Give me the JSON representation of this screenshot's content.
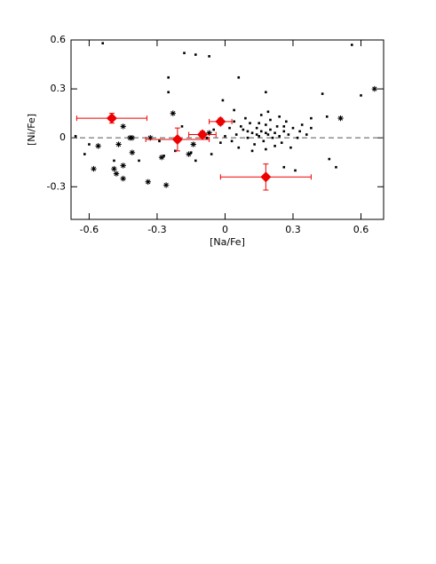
{
  "chart_data": {
    "type": "scatter",
    "x_label": "[Na/Fe]",
    "y_label": "[Ni/Fe]",
    "xlim": [
      -0.68,
      0.7
    ],
    "ylim": [
      -0.5,
      0.6
    ],
    "xticks": [
      -0.6,
      -0.3,
      0,
      0.3,
      0.6
    ],
    "yticks": [
      -0.3,
      0,
      0.3,
      0.6
    ],
    "reference_line": 0,
    "series": [
      {
        "marker": "dot",
        "color": "#000000",
        "x": [
          -0.54,
          -0.18,
          -0.13,
          -0.07,
          -0.25,
          -0.25,
          0.06,
          0.56,
          0.6,
          0.43,
          -0.66,
          -0.62,
          -0.6,
          -0.49,
          -0.38,
          -0.29,
          -0.27,
          -0.22,
          -0.19,
          -0.15,
          -0.13,
          -0.06,
          -0.01,
          0.04,
          0.18,
          0.26,
          0.31,
          0.46,
          0.49,
          0.38,
          0.45,
          0.05,
          0.08,
          0.1,
          0.12,
          0.14,
          0.15,
          0.16,
          0.17,
          0.18,
          0.19,
          0.2,
          0.21,
          0.22,
          0.23,
          0.24,
          0.25,
          0.26,
          0.27,
          0.28,
          0.3,
          0.32,
          0.34,
          0.11,
          0.13,
          0.06,
          0.02,
          0.0,
          -0.02,
          0.04,
          0.09,
          0.16,
          0.2,
          0.24,
          0.29,
          0.18,
          0.12,
          0.07,
          0.15,
          0.22,
          0.33,
          0.36,
          0.38,
          0.1,
          0.14,
          0.18,
          0.26,
          -0.05,
          -0.08,
          0.03,
          0.19
        ],
        "y": [
          0.58,
          0.52,
          0.51,
          0.5,
          0.37,
          0.28,
          0.37,
          0.57,
          0.26,
          0.27,
          0.01,
          -0.1,
          -0.04,
          -0.14,
          -0.14,
          -0.02,
          -0.11,
          -0.08,
          0.07,
          -0.09,
          -0.14,
          -0.1,
          0.23,
          0.17,
          0.28,
          -0.18,
          -0.2,
          -0.13,
          -0.18,
          0.12,
          0.13,
          0.02,
          0.05,
          0.0,
          0.03,
          0.06,
          0.01,
          0.04,
          -0.02,
          0.08,
          0.02,
          0.05,
          0.0,
          0.03,
          0.07,
          0.01,
          -0.03,
          0.04,
          0.1,
          0.02,
          0.06,
          0.0,
          0.08,
          0.09,
          -0.04,
          -0.06,
          0.06,
          0.01,
          -0.03,
          0.1,
          0.12,
          0.14,
          0.11,
          0.13,
          -0.06,
          -0.07,
          -0.08,
          0.07,
          0.09,
          -0.05,
          0.04,
          0.02,
          0.06,
          0.04,
          0.02,
          0.03,
          0.07,
          0.05,
          0.0,
          -0.02,
          0.16
        ]
      },
      {
        "marker": "asterisk",
        "color": "#000000",
        "x": [
          -0.58,
          -0.56,
          -0.49,
          -0.48,
          -0.47,
          -0.45,
          -0.45,
          -0.42,
          -0.41,
          -0.41,
          -0.34,
          -0.26,
          -0.23,
          -0.33,
          -0.28,
          -0.16,
          -0.14,
          -0.07,
          0.51,
          0.66,
          -0.45
        ],
        "y": [
          -0.19,
          -0.05,
          -0.19,
          -0.22,
          -0.04,
          -0.17,
          -0.25,
          0.0,
          0.0,
          -0.09,
          -0.27,
          -0.29,
          0.15,
          0.0,
          -0.12,
          -0.1,
          -0.04,
          0.03,
          0.12,
          0.3,
          0.07
        ]
      },
      {
        "marker": "diamond",
        "color": "#ee0000",
        "x": [
          -0.5,
          -0.21,
          -0.1,
          -0.02,
          0.18
        ],
        "y": [
          0.12,
          -0.01,
          0.02,
          0.1,
          -0.24
        ],
        "xerr": [
          0.155,
          0.14,
          0.06,
          0.05,
          0.2
        ],
        "yerr": [
          0.03,
          0.07,
          0.02,
          0.02,
          0.08
        ]
      }
    ]
  }
}
